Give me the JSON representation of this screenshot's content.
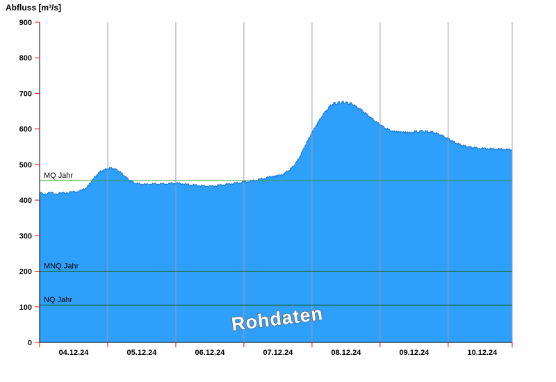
{
  "title": "Abfluss [m³/s]",
  "watermark": "Rohdaten",
  "style": {
    "area_fill": "#2E9FFA",
    "line_color": "#1673D1",
    "tick_color": "#FF0000",
    "grid_color": "#9AA0AA",
    "axis_color": "#000000",
    "label_color": "#000000",
    "watermark_fill": "#FFFFFF",
    "watermark_stroke": "#666666"
  },
  "chart_data": {
    "type": "area",
    "title": "Abfluss [m³/s]",
    "xlabel": "",
    "ylabel": "Abfluss [m³/s]",
    "x_unit": "days since 04.12.24 00:00",
    "xlim": [
      0,
      6.94
    ],
    "ylim": [
      0,
      900
    ],
    "grid": {
      "vertical_day_lines": [
        1,
        2,
        3,
        4,
        5,
        6
      ],
      "horizontal": false
    },
    "legend_position": "none",
    "x_tick_labels": [
      "04.12.24",
      "05.12.24",
      "06.12.24",
      "07.12.24",
      "08.12.24",
      "09.12.24",
      "10.12.24"
    ],
    "y_ticks": [
      0,
      100,
      200,
      300,
      400,
      500,
      600,
      700,
      800,
      900
    ],
    "reference_lines": [
      {
        "label": "MQ Jahr",
        "value": 455,
        "color": "#33A033"
      },
      {
        "label": "MNQ Jahr",
        "value": 200,
        "color": "#1B5E20"
      },
      {
        "label": "NQ Jahr",
        "value": 105,
        "color": "#1B5E20"
      }
    ],
    "series": [
      {
        "name": "Rohdaten",
        "points": [
          [
            0.0,
            420
          ],
          [
            0.08,
            418
          ],
          [
            0.16,
            421
          ],
          [
            0.24,
            418
          ],
          [
            0.32,
            420
          ],
          [
            0.4,
            421
          ],
          [
            0.48,
            423
          ],
          [
            0.55,
            424
          ],
          [
            0.62,
            428
          ],
          [
            0.68,
            434
          ],
          [
            0.72,
            442
          ],
          [
            0.76,
            452
          ],
          [
            0.8,
            462
          ],
          [
            0.84,
            471
          ],
          [
            0.88,
            478
          ],
          [
            0.92,
            483
          ],
          [
            0.96,
            486
          ],
          [
            1.0,
            488
          ],
          [
            1.04,
            490
          ],
          [
            1.08,
            489
          ],
          [
            1.12,
            486
          ],
          [
            1.16,
            482
          ],
          [
            1.2,
            476
          ],
          [
            1.24,
            469
          ],
          [
            1.28,
            462
          ],
          [
            1.32,
            456
          ],
          [
            1.36,
            451
          ],
          [
            1.4,
            448
          ],
          [
            1.45,
            446
          ],
          [
            1.5,
            445
          ],
          [
            1.56,
            444
          ],
          [
            1.62,
            445
          ],
          [
            1.68,
            446
          ],
          [
            1.74,
            445
          ],
          [
            1.8,
            446
          ],
          [
            1.86,
            445
          ],
          [
            1.92,
            447
          ],
          [
            1.98,
            448
          ],
          [
            2.04,
            447
          ],
          [
            2.1,
            446
          ],
          [
            2.16,
            444
          ],
          [
            2.22,
            443
          ],
          [
            2.28,
            442
          ],
          [
            2.34,
            441
          ],
          [
            2.4,
            440
          ],
          [
            2.46,
            439
          ],
          [
            2.52,
            439
          ],
          [
            2.58,
            440
          ],
          [
            2.64,
            442
          ],
          [
            2.7,
            443
          ],
          [
            2.76,
            445
          ],
          [
            2.82,
            446
          ],
          [
            2.88,
            448
          ],
          [
            2.94,
            449
          ],
          [
            3.0,
            451
          ],
          [
            3.06,
            452
          ],
          [
            3.12,
            454
          ],
          [
            3.18,
            456
          ],
          [
            3.24,
            459
          ],
          [
            3.3,
            461
          ],
          [
            3.36,
            464
          ],
          [
            3.42,
            468
          ],
          [
            3.46,
            465
          ],
          [
            3.5,
            471
          ],
          [
            3.54,
            468
          ],
          [
            3.58,
            474
          ],
          [
            3.62,
            478
          ],
          [
            3.66,
            483
          ],
          [
            3.7,
            490
          ],
          [
            3.74,
            498
          ],
          [
            3.78,
            509
          ],
          [
            3.82,
            522
          ],
          [
            3.86,
            537
          ],
          [
            3.9,
            553
          ],
          [
            3.94,
            568
          ],
          [
            3.98,
            583
          ],
          [
            4.02,
            596
          ],
          [
            4.06,
            610
          ],
          [
            4.1,
            622
          ],
          [
            4.14,
            634
          ],
          [
            4.18,
            645
          ],
          [
            4.22,
            654
          ],
          [
            4.26,
            663
          ],
          [
            4.3,
            669
          ],
          [
            4.33,
            674
          ],
          [
            4.36,
            668
          ],
          [
            4.39,
            676
          ],
          [
            4.42,
            671
          ],
          [
            4.45,
            677
          ],
          [
            4.48,
            672
          ],
          [
            4.51,
            675
          ],
          [
            4.54,
            670
          ],
          [
            4.57,
            673
          ],
          [
            4.6,
            668
          ],
          [
            4.64,
            664
          ],
          [
            4.68,
            659
          ],
          [
            4.72,
            654
          ],
          [
            4.76,
            648
          ],
          [
            4.8,
            642
          ],
          [
            4.84,
            636
          ],
          [
            4.88,
            629
          ],
          [
            4.92,
            623
          ],
          [
            4.96,
            617
          ],
          [
            5.0,
            612
          ],
          [
            5.04,
            607
          ],
          [
            5.08,
            602
          ],
          [
            5.12,
            598
          ],
          [
            5.16,
            595
          ],
          [
            5.2,
            592
          ],
          [
            5.24,
            594
          ],
          [
            5.28,
            590
          ],
          [
            5.32,
            593
          ],
          [
            5.36,
            589
          ],
          [
            5.4,
            592
          ],
          [
            5.44,
            588
          ],
          [
            5.48,
            591
          ],
          [
            5.52,
            594
          ],
          [
            5.56,
            591
          ],
          [
            5.6,
            595
          ],
          [
            5.64,
            592
          ],
          [
            5.68,
            594
          ],
          [
            5.72,
            591
          ],
          [
            5.76,
            592
          ],
          [
            5.8,
            589
          ],
          [
            5.84,
            587
          ],
          [
            5.88,
            584
          ],
          [
            5.92,
            580
          ],
          [
            5.96,
            576
          ],
          [
            6.0,
            572
          ],
          [
            6.04,
            568
          ],
          [
            6.08,
            564
          ],
          [
            6.12,
            560
          ],
          [
            6.16,
            557
          ],
          [
            6.2,
            554
          ],
          [
            6.24,
            552
          ],
          [
            6.28,
            550
          ],
          [
            6.32,
            549
          ],
          [
            6.36,
            548
          ],
          [
            6.4,
            547
          ],
          [
            6.46,
            546
          ],
          [
            6.52,
            545
          ],
          [
            6.58,
            545
          ],
          [
            6.64,
            544
          ],
          [
            6.7,
            544
          ],
          [
            6.76,
            543
          ],
          [
            6.82,
            543
          ],
          [
            6.88,
            542
          ],
          [
            6.94,
            542
          ]
        ]
      }
    ]
  }
}
